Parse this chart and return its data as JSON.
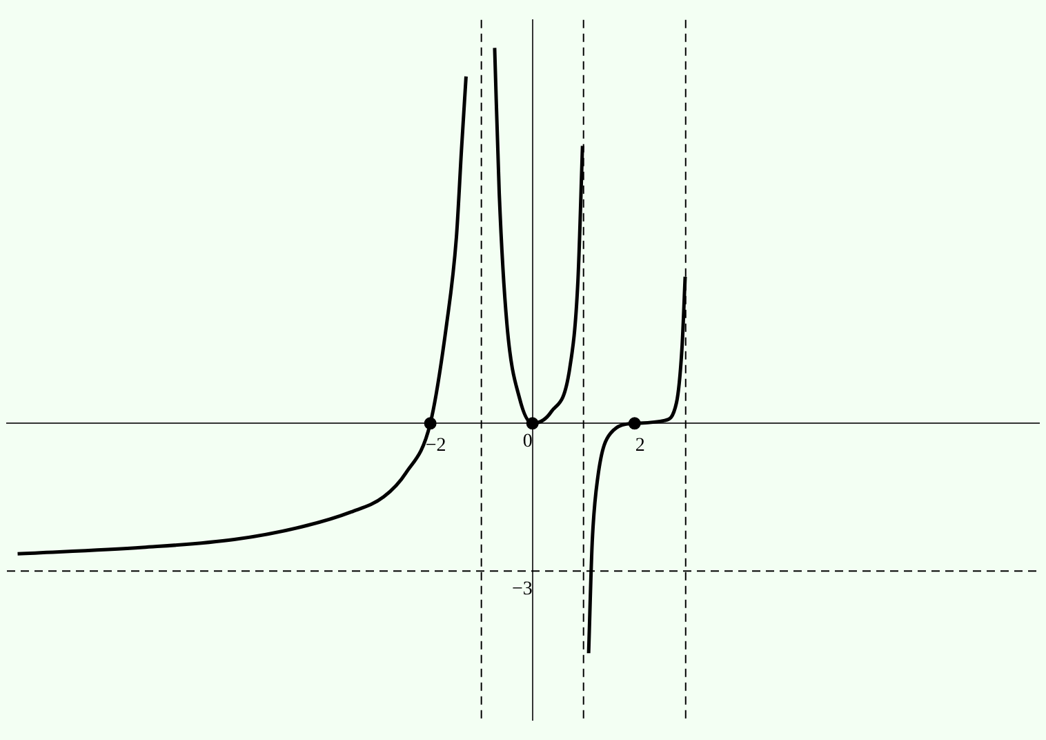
{
  "chart_data": {
    "type": "line",
    "xlim": [
      -10.29,
      9.92
    ],
    "ylim": [
      -6.03,
      8.2
    ],
    "xticks": [
      -2,
      2
    ],
    "yticks": [
      -3,
      0
    ],
    "grid": false,
    "legend": false,
    "series": [
      {
        "type": "line",
        "color": "#000000",
        "marker": "none",
        "line_style": "solid",
        "x": [
          -10.08,
          -7.63,
          -5.84,
          -4.51,
          -3.55,
          -2.91,
          -2.48,
          -2,
          -1.68,
          -1.49,
          -1.39,
          -1.3,
          -1,
          -0.74,
          -0.65,
          -0.5,
          -0.25,
          0,
          0.37,
          0.73,
          0.89,
          0.98,
          1,
          1.1,
          1.17,
          1.28,
          1.53,
          2,
          2.59,
          2.82,
          2.93,
          2.99
        ],
        "values": [
          -2.65,
          -2.52,
          -2.36,
          -2.1,
          -1.8,
          -1.49,
          -1.01,
          0,
          2.02,
          3.77,
          5.55,
          7.05,
          null,
          7.63,
          4.67,
          2.02,
          0.5,
          0,
          0.24,
          1.12,
          2.89,
          5.64,
          null,
          -4.67,
          -2.42,
          -1.09,
          -0.2,
          0,
          0.06,
          0.42,
          1.57,
          2.98
        ]
      },
      {
        "type": "scatter",
        "color": "#000000",
        "marker": "circle",
        "x": [
          -2,
          0,
          2
        ],
        "values": [
          0,
          0,
          0
        ]
      }
    ],
    "ref_lines": [
      {
        "axis": "x",
        "value": -1,
        "line_style": "dashed",
        "color": "#000000"
      },
      {
        "axis": "x",
        "value": 1,
        "line_style": "dashed",
        "color": "#000000"
      },
      {
        "axis": "x",
        "value": 3,
        "line_style": "dashed",
        "color": "#000000"
      },
      {
        "axis": "y",
        "value": -3,
        "line_style": "dashed",
        "color": "#000000"
      }
    ]
  }
}
